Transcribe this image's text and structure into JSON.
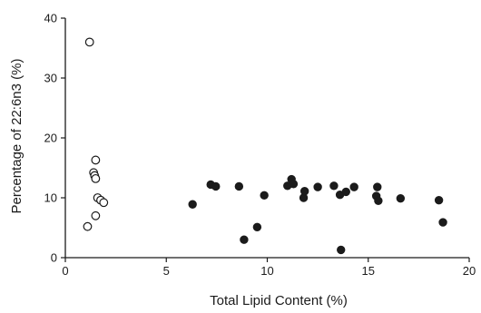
{
  "chart_data": {
    "type": "scatter",
    "title": "",
    "xlabel": "Total Lipid Content (%)",
    "ylabel": "Percentage of 22:6n3 (%)",
    "xlim": [
      0,
      20
    ],
    "ylim": [
      0,
      40
    ],
    "x_ticks": [
      "0",
      "5",
      "10",
      "15",
      "20"
    ],
    "y_ticks": [
      "0",
      "10",
      "20",
      "30",
      "40"
    ],
    "grid": false,
    "legend": "none",
    "series": [
      {
        "marker": "open-circle",
        "color": "#1b1b1b",
        "points": [
          {
            "x": 1.2,
            "y": 36.0
          },
          {
            "x": 1.5,
            "y": 16.3
          },
          {
            "x": 1.4,
            "y": 14.2
          },
          {
            "x": 1.45,
            "y": 13.7
          },
          {
            "x": 1.5,
            "y": 13.2
          },
          {
            "x": 1.6,
            "y": 10.0
          },
          {
            "x": 1.75,
            "y": 9.6
          },
          {
            "x": 1.9,
            "y": 9.2
          },
          {
            "x": 1.5,
            "y": 7.0
          },
          {
            "x": 1.1,
            "y": 5.2
          }
        ]
      },
      {
        "marker": "filled-circle",
        "color": "#1b1b1b",
        "points": [
          {
            "x": 6.3,
            "y": 8.9
          },
          {
            "x": 7.2,
            "y": 12.2
          },
          {
            "x": 7.45,
            "y": 11.9
          },
          {
            "x": 8.6,
            "y": 11.9
          },
          {
            "x": 8.85,
            "y": 3.0
          },
          {
            "x": 9.5,
            "y": 5.1
          },
          {
            "x": 9.85,
            "y": 10.4
          },
          {
            "x": 11.0,
            "y": 12.0
          },
          {
            "x": 11.2,
            "y": 13.1
          },
          {
            "x": 11.3,
            "y": 12.3
          },
          {
            "x": 11.8,
            "y": 10.0
          },
          {
            "x": 11.85,
            "y": 11.1
          },
          {
            "x": 12.5,
            "y": 11.8
          },
          {
            "x": 13.3,
            "y": 12.0
          },
          {
            "x": 13.6,
            "y": 10.5
          },
          {
            "x": 13.65,
            "y": 1.3
          },
          {
            "x": 13.9,
            "y": 11.0
          },
          {
            "x": 14.3,
            "y": 11.8
          },
          {
            "x": 15.4,
            "y": 10.3
          },
          {
            "x": 15.45,
            "y": 11.8
          },
          {
            "x": 15.5,
            "y": 9.5
          },
          {
            "x": 16.6,
            "y": 9.9
          },
          {
            "x": 18.5,
            "y": 9.6
          },
          {
            "x": 18.7,
            "y": 5.9
          }
        ]
      }
    ]
  }
}
